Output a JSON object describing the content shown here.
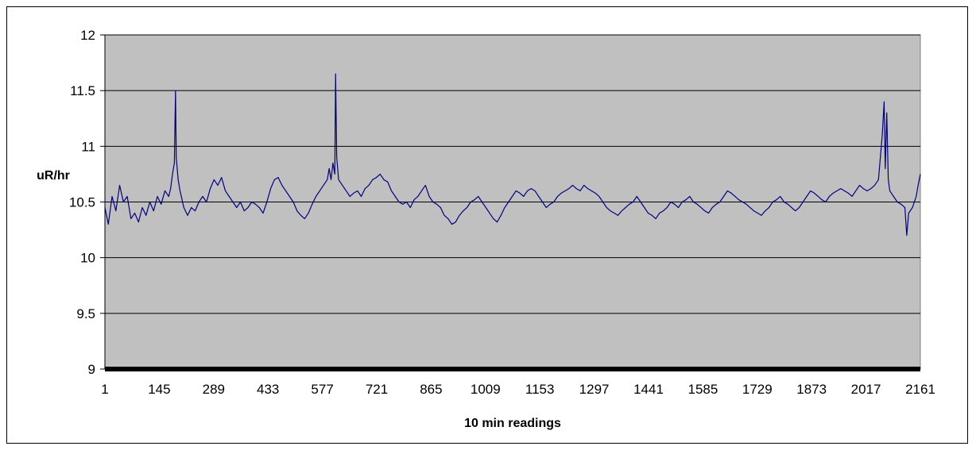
{
  "chart_data": {
    "type": "line",
    "title": "",
    "xlabel": "10 min readings",
    "ylabel": "uR/hr",
    "ylim": [
      9,
      12
    ],
    "xlim": [
      1,
      2161
    ],
    "yticks": [
      9,
      9.5,
      10,
      10.5,
      11,
      11.5,
      12
    ],
    "xticks": [
      1,
      145,
      289,
      433,
      577,
      721,
      865,
      1009,
      1153,
      1297,
      1441,
      1585,
      1729,
      1873,
      2017,
      2161
    ],
    "grid": "horizontal",
    "legend": "none",
    "colors": {
      "plot_bg": "#c0c0c0",
      "line": "#000080",
      "grid": "#000000"
    },
    "series": [
      {
        "points": [
          [
            1,
            10.45
          ],
          [
            10,
            10.3
          ],
          [
            20,
            10.55
          ],
          [
            30,
            10.42
          ],
          [
            40,
            10.65
          ],
          [
            50,
            10.5
          ],
          [
            60,
            10.55
          ],
          [
            70,
            10.35
          ],
          [
            80,
            10.4
          ],
          [
            90,
            10.32
          ],
          [
            100,
            10.45
          ],
          [
            110,
            10.38
          ],
          [
            120,
            10.5
          ],
          [
            130,
            10.42
          ],
          [
            140,
            10.55
          ],
          [
            150,
            10.48
          ],
          [
            160,
            10.6
          ],
          [
            170,
            10.55
          ],
          [
            175,
            10.62
          ],
          [
            180,
            10.75
          ],
          [
            185,
            10.85
          ],
          [
            188,
            11.5
          ],
          [
            190,
            10.9
          ],
          [
            195,
            10.7
          ],
          [
            200,
            10.6
          ],
          [
            210,
            10.45
          ],
          [
            220,
            10.38
          ],
          [
            230,
            10.45
          ],
          [
            240,
            10.42
          ],
          [
            250,
            10.5
          ],
          [
            260,
            10.55
          ],
          [
            270,
            10.5
          ],
          [
            280,
            10.62
          ],
          [
            290,
            10.7
          ],
          [
            300,
            10.65
          ],
          [
            310,
            10.72
          ],
          [
            320,
            10.6
          ],
          [
            330,
            10.55
          ],
          [
            340,
            10.5
          ],
          [
            350,
            10.45
          ],
          [
            360,
            10.5
          ],
          [
            370,
            10.42
          ],
          [
            380,
            10.45
          ],
          [
            390,
            10.5
          ],
          [
            400,
            10.48
          ],
          [
            410,
            10.45
          ],
          [
            420,
            10.4
          ],
          [
            430,
            10.5
          ],
          [
            440,
            10.62
          ],
          [
            450,
            10.7
          ],
          [
            460,
            10.72
          ],
          [
            470,
            10.65
          ],
          [
            480,
            10.6
          ],
          [
            490,
            10.55
          ],
          [
            500,
            10.5
          ],
          [
            510,
            10.42
          ],
          [
            520,
            10.38
          ],
          [
            530,
            10.35
          ],
          [
            540,
            10.4
          ],
          [
            550,
            10.48
          ],
          [
            560,
            10.55
          ],
          [
            570,
            10.6
          ],
          [
            580,
            10.65
          ],
          [
            590,
            10.7
          ],
          [
            595,
            10.8
          ],
          [
            600,
            10.7
          ],
          [
            605,
            10.85
          ],
          [
            610,
            10.75
          ],
          [
            612,
            11.65
          ],
          [
            615,
            10.9
          ],
          [
            620,
            10.7
          ],
          [
            630,
            10.65
          ],
          [
            640,
            10.6
          ],
          [
            650,
            10.55
          ],
          [
            660,
            10.58
          ],
          [
            670,
            10.6
          ],
          [
            680,
            10.55
          ],
          [
            690,
            10.62
          ],
          [
            700,
            10.65
          ],
          [
            710,
            10.7
          ],
          [
            720,
            10.72
          ],
          [
            730,
            10.75
          ],
          [
            740,
            10.7
          ],
          [
            750,
            10.68
          ],
          [
            760,
            10.6
          ],
          [
            770,
            10.55
          ],
          [
            780,
            10.5
          ],
          [
            790,
            10.48
          ],
          [
            800,
            10.5
          ],
          [
            810,
            10.45
          ],
          [
            820,
            10.52
          ],
          [
            830,
            10.55
          ],
          [
            840,
            10.6
          ],
          [
            850,
            10.65
          ],
          [
            860,
            10.55
          ],
          [
            870,
            10.5
          ],
          [
            880,
            10.48
          ],
          [
            890,
            10.45
          ],
          [
            900,
            10.38
          ],
          [
            910,
            10.35
          ],
          [
            920,
            10.3
          ],
          [
            930,
            10.32
          ],
          [
            940,
            10.38
          ],
          [
            950,
            10.42
          ],
          [
            960,
            10.45
          ],
          [
            970,
            10.5
          ],
          [
            980,
            10.52
          ],
          [
            990,
            10.55
          ],
          [
            1000,
            10.5
          ],
          [
            1010,
            10.45
          ],
          [
            1020,
            10.4
          ],
          [
            1030,
            10.35
          ],
          [
            1040,
            10.32
          ],
          [
            1050,
            10.38
          ],
          [
            1060,
            10.45
          ],
          [
            1070,
            10.5
          ],
          [
            1080,
            10.55
          ],
          [
            1090,
            10.6
          ],
          [
            1100,
            10.58
          ],
          [
            1110,
            10.55
          ],
          [
            1120,
            10.6
          ],
          [
            1130,
            10.62
          ],
          [
            1140,
            10.6
          ],
          [
            1150,
            10.55
          ],
          [
            1160,
            10.5
          ],
          [
            1170,
            10.45
          ],
          [
            1180,
            10.48
          ],
          [
            1190,
            10.5
          ],
          [
            1200,
            10.55
          ],
          [
            1210,
            10.58
          ],
          [
            1220,
            10.6
          ],
          [
            1230,
            10.62
          ],
          [
            1240,
            10.65
          ],
          [
            1250,
            10.62
          ],
          [
            1260,
            10.6
          ],
          [
            1270,
            10.65
          ],
          [
            1280,
            10.62
          ],
          [
            1290,
            10.6
          ],
          [
            1300,
            10.58
          ],
          [
            1310,
            10.55
          ],
          [
            1320,
            10.5
          ],
          [
            1330,
            10.45
          ],
          [
            1340,
            10.42
          ],
          [
            1350,
            10.4
          ],
          [
            1360,
            10.38
          ],
          [
            1370,
            10.42
          ],
          [
            1380,
            10.45
          ],
          [
            1390,
            10.48
          ],
          [
            1400,
            10.5
          ],
          [
            1410,
            10.55
          ],
          [
            1420,
            10.5
          ],
          [
            1430,
            10.45
          ],
          [
            1440,
            10.4
          ],
          [
            1450,
            10.38
          ],
          [
            1460,
            10.35
          ],
          [
            1470,
            10.4
          ],
          [
            1480,
            10.42
          ],
          [
            1490,
            10.45
          ],
          [
            1500,
            10.5
          ],
          [
            1510,
            10.48
          ],
          [
            1520,
            10.45
          ],
          [
            1530,
            10.5
          ],
          [
            1540,
            10.52
          ],
          [
            1550,
            10.55
          ],
          [
            1560,
            10.5
          ],
          [
            1570,
            10.48
          ],
          [
            1580,
            10.45
          ],
          [
            1590,
            10.42
          ],
          [
            1600,
            10.4
          ],
          [
            1610,
            10.45
          ],
          [
            1620,
            10.48
          ],
          [
            1630,
            10.5
          ],
          [
            1640,
            10.55
          ],
          [
            1650,
            10.6
          ],
          [
            1660,
            10.58
          ],
          [
            1670,
            10.55
          ],
          [
            1680,
            10.52
          ],
          [
            1690,
            10.5
          ],
          [
            1700,
            10.48
          ],
          [
            1710,
            10.45
          ],
          [
            1720,
            10.42
          ],
          [
            1730,
            10.4
          ],
          [
            1740,
            10.38
          ],
          [
            1750,
            10.42
          ],
          [
            1760,
            10.45
          ],
          [
            1770,
            10.5
          ],
          [
            1780,
            10.52
          ],
          [
            1790,
            10.55
          ],
          [
            1800,
            10.5
          ],
          [
            1810,
            10.48
          ],
          [
            1820,
            10.45
          ],
          [
            1830,
            10.42
          ],
          [
            1840,
            10.45
          ],
          [
            1850,
            10.5
          ],
          [
            1860,
            10.55
          ],
          [
            1870,
            10.6
          ],
          [
            1880,
            10.58
          ],
          [
            1890,
            10.55
          ],
          [
            1900,
            10.52
          ],
          [
            1910,
            10.5
          ],
          [
            1920,
            10.55
          ],
          [
            1930,
            10.58
          ],
          [
            1940,
            10.6
          ],
          [
            1950,
            10.62
          ],
          [
            1960,
            10.6
          ],
          [
            1970,
            10.58
          ],
          [
            1980,
            10.55
          ],
          [
            1990,
            10.6
          ],
          [
            2000,
            10.65
          ],
          [
            2010,
            10.62
          ],
          [
            2020,
            10.6
          ],
          [
            2030,
            10.62
          ],
          [
            2040,
            10.65
          ],
          [
            2050,
            10.7
          ],
          [
            2055,
            10.9
          ],
          [
            2060,
            11.1
          ],
          [
            2065,
            11.4
          ],
          [
            2068,
            10.8
          ],
          [
            2072,
            11.3
          ],
          [
            2076,
            10.7
          ],
          [
            2080,
            10.6
          ],
          [
            2090,
            10.55
          ],
          [
            2100,
            10.5
          ],
          [
            2110,
            10.48
          ],
          [
            2120,
            10.45
          ],
          [
            2125,
            10.2
          ],
          [
            2130,
            10.4
          ],
          [
            2140,
            10.45
          ],
          [
            2150,
            10.55
          ],
          [
            2155,
            10.65
          ],
          [
            2161,
            10.75
          ]
        ]
      }
    ]
  }
}
